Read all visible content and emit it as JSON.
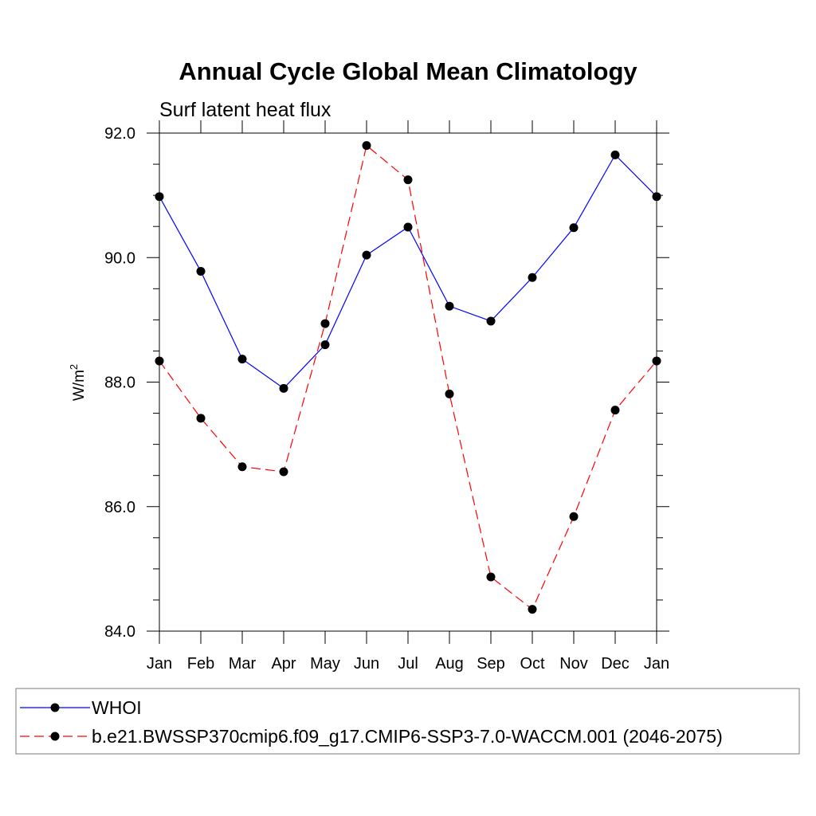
{
  "chart_data": {
    "type": "line",
    "title": "Annual Cycle Global Mean Climatology",
    "subtitle": "Surf latent heat flux",
    "ylabel": "W/m",
    "ylabel_superscript": "2",
    "xlabel": "",
    "categories": [
      "Jan",
      "Feb",
      "Mar",
      "Apr",
      "May",
      "Jun",
      "Jul",
      "Aug",
      "Sep",
      "Oct",
      "Nov",
      "Dec",
      "Jan"
    ],
    "ylim": [
      84.0,
      92.0
    ],
    "yticks": [
      "84.0",
      "86.0",
      "88.0",
      "90.0",
      "92.0"
    ],
    "grid": false,
    "legend_position": "bottom",
    "series": [
      {
        "name": "WHOI",
        "color": "#0000ff",
        "style": "solid",
        "marker": "filled-circle",
        "values": [
          90.98,
          89.78,
          88.37,
          87.9,
          88.6,
          90.04,
          90.49,
          89.22,
          88.98,
          89.68,
          90.48,
          91.65,
          90.98
        ]
      },
      {
        "name": "b.e21.BWSSP370cmip6.f09_g17.CMIP6-SSP3-7.0-WACCM.001 (2046-2075)",
        "color": "#ff0000",
        "style": "dashed",
        "marker": "filled-circle",
        "values": [
          88.34,
          87.42,
          86.64,
          86.56,
          88.94,
          91.8,
          91.25,
          87.81,
          84.87,
          84.35,
          85.84,
          87.55,
          88.34
        ]
      }
    ]
  }
}
